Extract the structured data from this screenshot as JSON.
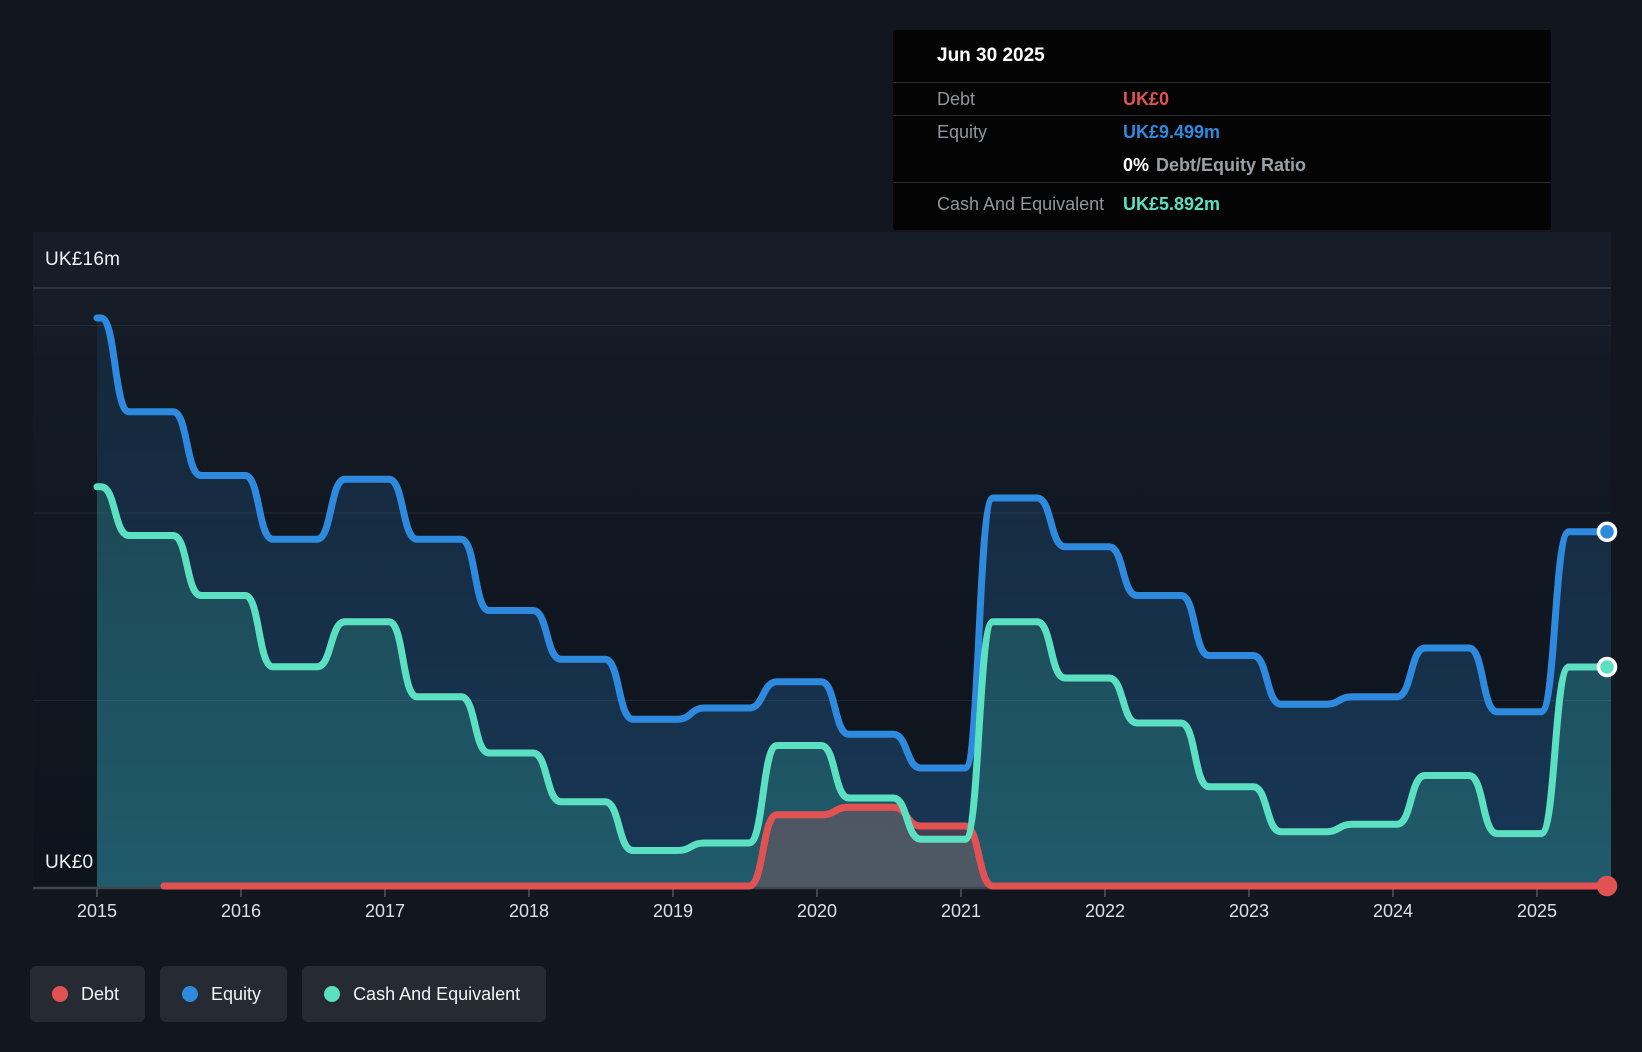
{
  "tooltip": {
    "date": "Jun 30 2025",
    "debt_label": "Debt",
    "debt_value": "UK£0",
    "equity_label": "Equity",
    "equity_value": "UK£9.499m",
    "ratio_value": "0%",
    "ratio_label": "Debt/Equity Ratio",
    "cash_label": "Cash And Equivalent",
    "cash_value": "UK£5.892m"
  },
  "axis": {
    "y_top": "UK£16m",
    "y_zero": "UK£0",
    "years": [
      "2015",
      "2016",
      "2017",
      "2018",
      "2019",
      "2020",
      "2021",
      "2022",
      "2023",
      "2024",
      "2025"
    ]
  },
  "legend": {
    "items": [
      {
        "label": "Debt",
        "color": "#e25252"
      },
      {
        "label": "Equity",
        "color": "#2e8ade"
      },
      {
        "label": "Cash And Equivalent",
        "color": "#5ce0c2"
      }
    ]
  },
  "colors": {
    "debt": "#e25252",
    "equity": "#2e8ade",
    "cash": "#5ce0c2",
    "background": "#12161e",
    "tooltip_bg": "#040404",
    "axis_line": "#3f464e"
  },
  "chart_data": {
    "type": "area",
    "y_unit": "UK£ millions",
    "ylim": [
      0,
      16
    ],
    "y_max_line": 16,
    "y_gridlines": [
      5,
      10,
      15
    ],
    "x_ticks": [
      "2015",
      "2016",
      "2017",
      "2018",
      "2019",
      "2020",
      "2021",
      "2022",
      "2023",
      "2024",
      "2025"
    ],
    "legend_position": "bottom-left",
    "x_years": [
      2015.0,
      2015.5,
      2016.0,
      2016.5,
      2017.0,
      2017.5,
      2018.0,
      2018.5,
      2019.0,
      2019.5,
      2020.0,
      2020.5,
      2021.0,
      2021.5,
      2022.0,
      2022.5,
      2023.0,
      2023.5,
      2024.0,
      2024.5,
      2025.0,
      2025.5
    ],
    "series": [
      {
        "name": "Debt",
        "color": "#e25252",
        "marker_ring": false,
        "values": [
          null,
          0,
          0,
          0,
          0,
          0,
          0,
          0,
          0,
          0,
          1.9,
          2.1,
          1.6,
          0,
          0,
          0,
          0,
          0,
          0,
          0,
          0,
          0
        ]
      },
      {
        "name": "Equity",
        "color": "#2e8ade",
        "marker_ring": true,
        "values": [
          15.2,
          12.7,
          11.0,
          9.3,
          10.9,
          9.3,
          7.4,
          6.1,
          4.5,
          4.8,
          5.5,
          4.1,
          3.2,
          10.4,
          9.1,
          7.8,
          6.2,
          4.9,
          5.1,
          6.4,
          4.7,
          9.499
        ]
      },
      {
        "name": "Cash And Equivalent",
        "color": "#5ce0c2",
        "marker_ring": true,
        "values": [
          10.7,
          9.4,
          7.8,
          5.9,
          7.1,
          5.1,
          3.6,
          2.3,
          1.0,
          1.2,
          3.8,
          2.4,
          1.3,
          7.1,
          5.6,
          4.4,
          2.7,
          1.5,
          1.7,
          3.0,
          1.45,
          5.892
        ]
      }
    ],
    "final_values": {
      "date": "Jun 30 2025",
      "debt": 0,
      "equity": 9.499,
      "cash": 5.892,
      "debt_equity_ratio_pct": 0
    }
  }
}
